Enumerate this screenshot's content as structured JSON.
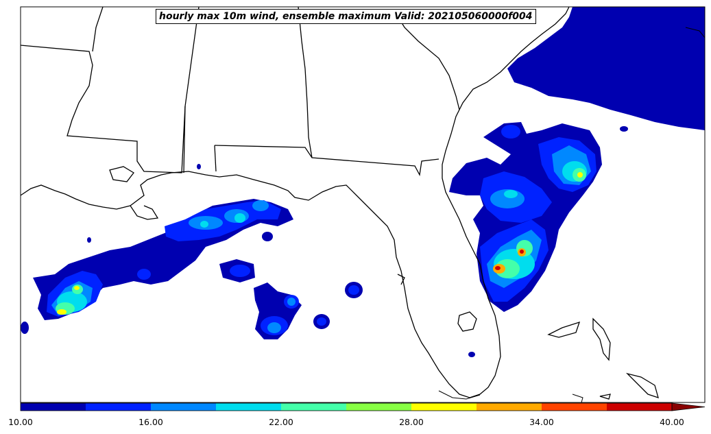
{
  "title": "hourly max 10m wind, ensemble maximum Valid: 202105060000f004",
  "colorbar": {
    "ticks": [
      "10.00",
      "16.00",
      "22.00",
      "28.00",
      "34.00",
      "40.00"
    ],
    "range": [
      10,
      40
    ],
    "extend": "max",
    "colors": [
      "#0000b0",
      "#0022ff",
      "#0088ff",
      "#00ddee",
      "#44ffaa",
      "#88ff44",
      "#ffff00",
      "#ffaa00",
      "#ff4400",
      "#cc0000",
      "#880000"
    ]
  }
}
